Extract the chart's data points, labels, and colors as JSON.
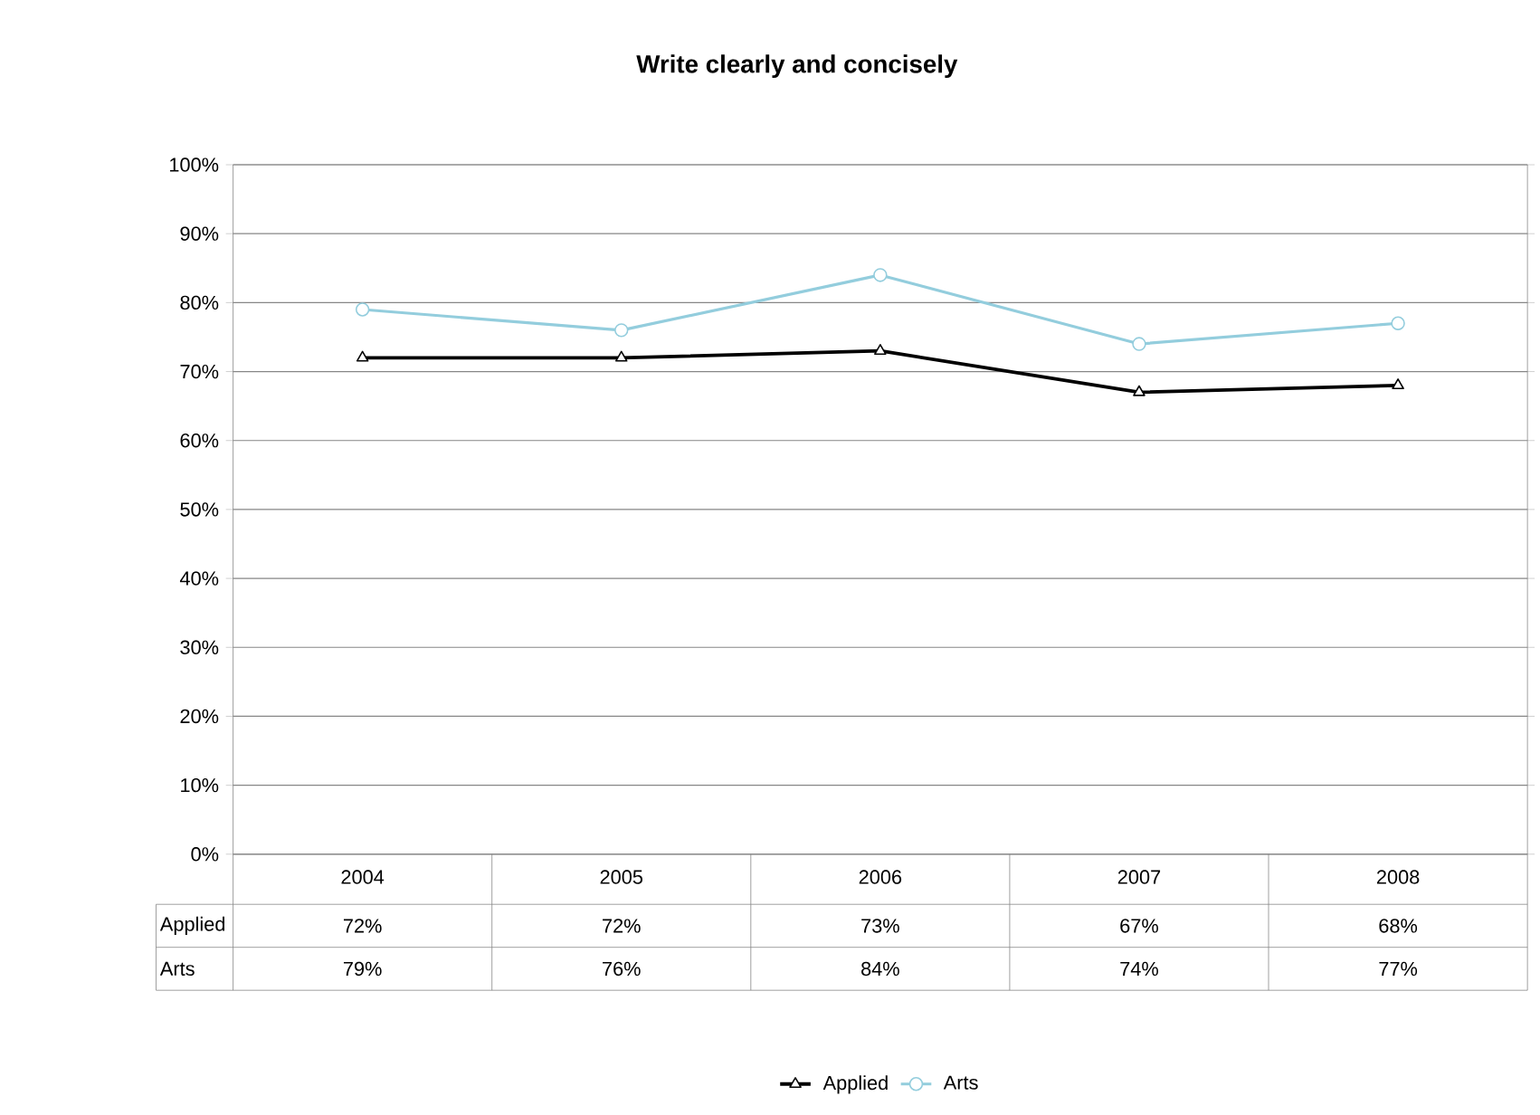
{
  "chart_data": {
    "type": "line",
    "title": "Write clearly and concisely",
    "categories": [
      "2004",
      "2005",
      "2006",
      "2007",
      "2008"
    ],
    "series": [
      {
        "name": "Applied",
        "color": "#000000",
        "marker": "triangle",
        "values": [
          72,
          72,
          73,
          67,
          68
        ],
        "value_labels": [
          "72%",
          "72%",
          "73%",
          "67%",
          "68%"
        ]
      },
      {
        "name": "Arts",
        "color": "#93cddd",
        "marker": "circle",
        "values": [
          79,
          76,
          84,
          74,
          77
        ],
        "value_labels": [
          "79%",
          "76%",
          "84%",
          "74%",
          "77%"
        ]
      }
    ],
    "ylim": [
      0,
      100
    ],
    "yticks": [
      {
        "value": 0,
        "label": "0%"
      },
      {
        "value": 10,
        "label": "10%"
      },
      {
        "value": 20,
        "label": "20%"
      },
      {
        "value": 30,
        "label": "30%"
      },
      {
        "value": 40,
        "label": "40%"
      },
      {
        "value": 50,
        "label": "50%"
      },
      {
        "value": 60,
        "label": "60%"
      },
      {
        "value": 70,
        "label": "70%"
      },
      {
        "value": 80,
        "label": "80%"
      },
      {
        "value": 90,
        "label": "90%"
      },
      {
        "value": 100,
        "label": "100%"
      }
    ],
    "grid": "y",
    "legend": "bottom"
  }
}
